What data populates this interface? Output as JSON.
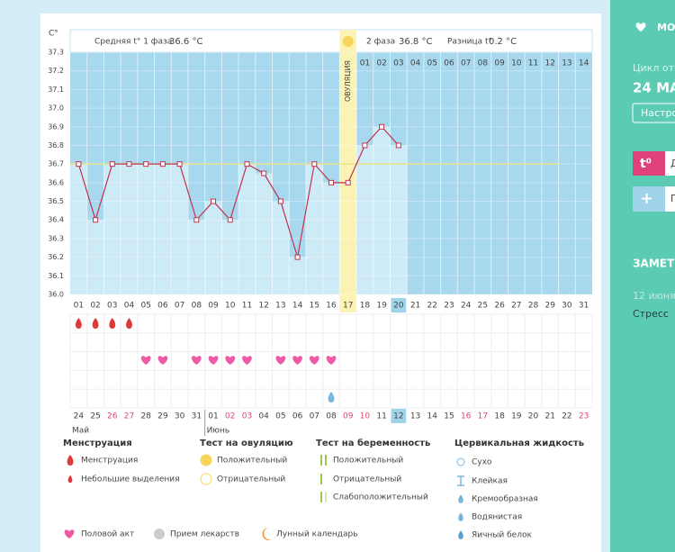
{
  "chart_data": {
    "type": "line",
    "ylabel": "C°",
    "categories": [
      "01",
      "02",
      "03",
      "04",
      "05",
      "06",
      "07",
      "08",
      "09",
      "10",
      "11",
      "12",
      "13",
      "14",
      "15",
      "16",
      "17",
      "18",
      "19",
      "20",
      "21",
      "22",
      "23",
      "24",
      "25",
      "26",
      "27",
      "28",
      "29",
      "30",
      "31"
    ],
    "series": [
      {
        "name": "t°",
        "color": "#c0334e",
        "values": [
          36.7,
          36.4,
          36.7,
          36.7,
          36.7,
          36.7,
          36.7,
          36.4,
          36.5,
          36.4,
          36.7,
          36.65,
          36.5,
          36.2,
          36.7,
          36.6,
          36.6,
          36.8,
          36.9,
          36.8,
          null,
          null,
          null,
          null,
          null,
          null,
          null,
          null,
          null,
          null,
          null
        ]
      }
    ],
    "ylim": [
      36.0,
      37.3
    ],
    "yticks": [
      {
        "value": 36.0,
        "label": "36.0"
      },
      36.1,
      36.2,
      36.3,
      36.4,
      36.5,
      36.6,
      36.7,
      36.8,
      36.9,
      {
        "value": 37.0,
        "label": "37.0"
      },
      37.1,
      37.2,
      37.3
    ],
    "coverline": 36.7,
    "coverline_color": "#e8e48a",
    "grid": true,
    "ovulation_day": "17",
    "ovulation_label": "ОВУЛЯЦИЯ",
    "current_day": "20",
    "phase1_label": "Средняя t° 1 фаза",
    "phase1_value": "36.6 °C",
    "phase2_label": "2 фаза",
    "phase2_value": "36.8 °C",
    "difference_label": "Разница t°",
    "difference_value": "0.2 °C",
    "phase2_days": [
      "01",
      "02",
      "03",
      "04",
      "05",
      "06",
      "07",
      "08",
      "09",
      "10",
      "11",
      "12",
      "13",
      "14"
    ]
  },
  "symptoms": {
    "menstruation_days": [
      "01",
      "02",
      "03",
      "04"
    ],
    "intercourse_days": [
      "05",
      "06",
      "08",
      "09",
      "10",
      "11",
      "13",
      "14",
      "15",
      "16"
    ],
    "fluid_days": [
      "16"
    ]
  },
  "dates": [
    {
      "label": "24",
      "weekend": false
    },
    {
      "label": "25",
      "weekend": false
    },
    {
      "label": "26",
      "weekend": true
    },
    {
      "label": "27",
      "weekend": true
    },
    {
      "label": "28",
      "weekend": false
    },
    {
      "label": "29",
      "weekend": false
    },
    {
      "label": "30",
      "weekend": false
    },
    {
      "label": "31",
      "weekend": false
    },
    {
      "label": "01",
      "weekend": false
    },
    {
      "label": "02",
      "weekend": true
    },
    {
      "label": "03",
      "weekend": true
    },
    {
      "label": "04",
      "weekend": false
    },
    {
      "label": "05",
      "weekend": false
    },
    {
      "label": "06",
      "weekend": false
    },
    {
      "label": "07",
      "weekend": false
    },
    {
      "label": "08",
      "weekend": false
    },
    {
      "label": "09",
      "weekend": true
    },
    {
      "label": "10",
      "weekend": true
    },
    {
      "label": "11",
      "weekend": false
    },
    {
      "label": "12",
      "weekend": false
    },
    {
      "label": "13",
      "weekend": false
    },
    {
      "label": "14",
      "weekend": false
    },
    {
      "label": "15",
      "weekend": false
    },
    {
      "label": "16",
      "weekend": true
    },
    {
      "label": "17",
      "weekend": true
    },
    {
      "label": "18",
      "weekend": false
    },
    {
      "label": "19",
      "weekend": false
    },
    {
      "label": "20",
      "weekend": false
    },
    {
      "label": "21",
      "weekend": false
    },
    {
      "label": "22",
      "weekend": false
    },
    {
      "label": "23",
      "weekend": true
    }
  ],
  "current_date": "12",
  "months": [
    {
      "label": "Май",
      "start": "24"
    },
    {
      "label": "Июнь",
      "start": "01"
    }
  ],
  "legend": {
    "menstruation": {
      "title": "Менструация",
      "items": [
        "Менструация",
        "Небольшие выделения"
      ]
    },
    "ovulation_test": {
      "title": "Тест на овуляцию",
      "items": [
        "Положительный",
        "Отрицательный"
      ]
    },
    "pregnancy_test": {
      "title": "Тест на беременность",
      "items": [
        "Положительный",
        "Отрицательный",
        "Слабоположительный"
      ]
    },
    "cervical_fluid": {
      "title": "Цервикальная жидкость",
      "items": [
        "Сухо",
        "Клейкая",
        "Кремообразная",
        "Водянистая",
        "Яичный белок"
      ]
    },
    "other": [
      "Половой акт",
      "Прием лекарств",
      "Лунный календарь"
    ]
  },
  "sidebar": {
    "title": "МО",
    "cycle_label": "Цикл от",
    "cycle_date": "24 МА",
    "settings_button": "Настро",
    "temperature_icon": "t⁰",
    "temperature_button": "Д",
    "add_icon": "+",
    "add_button": "П",
    "notes_title": "ЗАМЕТ",
    "note_date": "12 июня",
    "note_text": "Стресс"
  }
}
